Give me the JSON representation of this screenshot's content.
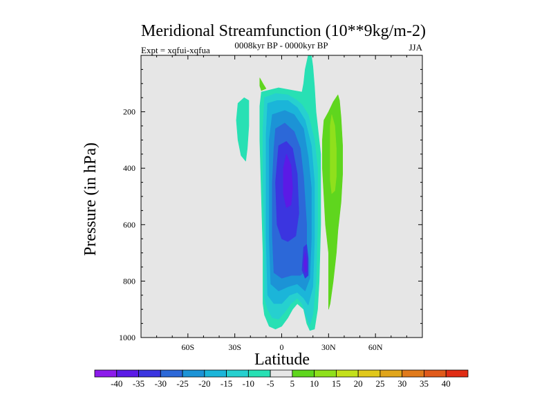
{
  "chart_data": {
    "type": "heatmap",
    "title": "Meridional Streamfunction (10**9kg/m-2)",
    "subtitle_left": "Expt = xqfui-xqfua",
    "subtitle_center": "0008kyr BP - 0000kyr BP",
    "subtitle_right": "JJA",
    "xlabel": "Latitude",
    "ylabel": "Pressure (in hPa)",
    "xlim": [
      -90,
      90
    ],
    "ylim": [
      1000,
      0
    ],
    "x_ticks": [
      {
        "value": -60,
        "label": "60S"
      },
      {
        "value": -30,
        "label": "30S"
      },
      {
        "value": 0,
        "label": "0"
      },
      {
        "value": 30,
        "label": "30N"
      },
      {
        "value": 60,
        "label": "60N"
      }
    ],
    "y_ticks": [
      {
        "value": 200,
        "label": "200"
      },
      {
        "value": 400,
        "label": "400"
      },
      {
        "value": 600,
        "label": "600"
      },
      {
        "value": 800,
        "label": "800"
      },
      {
        "value": 1000,
        "label": "1000"
      }
    ],
    "colorbar": {
      "levels": [
        "-40",
        "-35",
        "-30",
        "-25",
        "-20",
        "-15",
        "-10",
        "-5",
        "5",
        "10",
        "15",
        "20",
        "25",
        "30",
        "35",
        "40"
      ],
      "colors": [
        "#8c1aeb",
        "#5b1ae6",
        "#3b35e0",
        "#2c68d8",
        "#1c93d6",
        "#1bb5d9",
        "#26d0cf",
        "#28e0b4",
        "#e6e6e6",
        "#5fd61e",
        "#8fe01c",
        "#c3e01a",
        "#e0c81a",
        "#e0a51a",
        "#e07a1a",
        "#e05a1a",
        "#e02d14"
      ]
    },
    "regions": [
      {
        "name": "neg-5",
        "color": "#28e0b4",
        "points": [
          [
            -13,
            130
          ],
          [
            -2,
            115
          ],
          [
            8,
            125
          ],
          [
            13,
            130
          ],
          [
            14,
            100
          ],
          [
            15,
            50
          ],
          [
            17,
            0
          ],
          [
            19,
            0
          ],
          [
            20,
            40
          ],
          [
            21,
            110
          ],
          [
            22,
            200
          ],
          [
            25,
            350
          ],
          [
            25,
            600
          ],
          [
            24,
            800
          ],
          [
            23,
            900
          ],
          [
            21,
            970
          ],
          [
            18,
            975
          ],
          [
            16,
            950
          ],
          [
            14,
            900
          ],
          [
            10,
            880
          ],
          [
            7,
            900
          ],
          [
            4,
            930
          ],
          [
            0,
            960
          ],
          [
            -4,
            970
          ],
          [
            -8,
            960
          ],
          [
            -11,
            920
          ],
          [
            -12,
            880
          ],
          [
            -12,
            850
          ],
          [
            -12,
            700
          ],
          [
            -13,
            500
          ],
          [
            -14,
            300
          ],
          [
            -14,
            180
          ]
        ]
      },
      {
        "name": "neg-5-w",
        "color": "#28e0b4",
        "points": [
          [
            -28,
            170
          ],
          [
            -24,
            150
          ],
          [
            -21,
            160
          ],
          [
            -21,
            250
          ],
          [
            -22,
            330
          ],
          [
            -23,
            375
          ],
          [
            -26,
            355
          ],
          [
            -28,
            300
          ],
          [
            -29,
            230
          ]
        ]
      },
      {
        "name": "pos-5-dot",
        "color": "#5fd61e",
        "points": [
          [
            -14,
            80
          ],
          [
            -12,
            100
          ],
          [
            -10,
            118
          ],
          [
            -13,
            125
          ],
          [
            -14,
            108
          ]
        ]
      },
      {
        "name": "neg-10",
        "color": "#26d0cf",
        "points": [
          [
            -11,
            150
          ],
          [
            -4,
            135
          ],
          [
            4,
            140
          ],
          [
            10,
            160
          ],
          [
            13,
            175
          ],
          [
            17,
            210
          ],
          [
            21,
            300
          ],
          [
            23,
            400
          ],
          [
            23,
            600
          ],
          [
            22,
            800
          ],
          [
            20,
            920
          ],
          [
            18,
            955
          ],
          [
            16,
            930
          ],
          [
            13,
            880
          ],
          [
            10,
            860
          ],
          [
            6,
            880
          ],
          [
            2,
            910
          ],
          [
            -2,
            935
          ],
          [
            -6,
            930
          ],
          [
            -9,
            900
          ],
          [
            -11,
            860
          ],
          [
            -11,
            650
          ],
          [
            -12,
            450
          ],
          [
            -12,
            260
          ]
        ]
      },
      {
        "name": "neg-15",
        "color": "#1bb5d9",
        "points": [
          [
            -9,
            170
          ],
          [
            -3,
            160
          ],
          [
            4,
            160
          ],
          [
            10,
            185
          ],
          [
            15,
            230
          ],
          [
            19,
            320
          ],
          [
            21,
            450
          ],
          [
            21,
            650
          ],
          [
            20,
            820
          ],
          [
            17,
            885
          ],
          [
            14,
            860
          ],
          [
            10,
            840
          ],
          [
            5,
            850
          ],
          [
            0,
            880
          ],
          [
            -5,
            880
          ],
          [
            -9,
            850
          ],
          [
            -10,
            650
          ],
          [
            -10,
            450
          ],
          [
            -10,
            280
          ]
        ]
      },
      {
        "name": "neg-20",
        "color": "#1c93d6",
        "points": [
          [
            -6,
            210
          ],
          [
            2,
            195
          ],
          [
            8,
            210
          ],
          [
            14,
            260
          ],
          [
            17,
            360
          ],
          [
            19,
            470
          ],
          [
            19,
            650
          ],
          [
            18,
            790
          ],
          [
            15,
            835
          ],
          [
            10,
            810
          ],
          [
            4,
            820
          ],
          [
            -2,
            835
          ],
          [
            -7,
            810
          ],
          [
            -8,
            650
          ],
          [
            -8,
            450
          ],
          [
            -8,
            300
          ]
        ]
      },
      {
        "name": "neg-25",
        "color": "#2c68d8",
        "points": [
          [
            -4,
            260
          ],
          [
            2,
            240
          ],
          [
            8,
            270
          ],
          [
            12,
            330
          ],
          [
            14,
            430
          ],
          [
            16,
            600
          ],
          [
            16,
            760
          ],
          [
            12,
            780
          ],
          [
            6,
            780
          ],
          [
            0,
            790
          ],
          [
            -5,
            770
          ],
          [
            -6,
            640
          ],
          [
            -6,
            450
          ],
          [
            -5,
            330
          ]
        ]
      },
      {
        "name": "neg-30",
        "color": "#3b35e0",
        "points": [
          [
            -2,
            320
          ],
          [
            3,
            305
          ],
          [
            7,
            330
          ],
          [
            10,
            420
          ],
          [
            11,
            560
          ],
          [
            9,
            640
          ],
          [
            4,
            660
          ],
          [
            0,
            650
          ],
          [
            -3,
            600
          ],
          [
            -4,
            450
          ]
        ]
      },
      {
        "name": "neg-30-low",
        "color": "#3b35e0",
        "points": [
          [
            14,
            680
          ],
          [
            16,
            670
          ],
          [
            17,
            720
          ],
          [
            17,
            780
          ],
          [
            15,
            790
          ],
          [
            13,
            760
          ]
        ]
      },
      {
        "name": "neg-35",
        "color": "#5b1ae6",
        "points": [
          [
            3,
            350
          ],
          [
            6,
            390
          ],
          [
            7,
            470
          ],
          [
            6,
            530
          ],
          [
            3,
            540
          ],
          [
            1,
            490
          ],
          [
            1,
            400
          ]
        ]
      },
      {
        "name": "neg-35-low",
        "color": "#5b1ae6",
        "points": [
          [
            15,
            695
          ],
          [
            16,
            730
          ],
          [
            16,
            765
          ],
          [
            15,
            770
          ],
          [
            14,
            740
          ]
        ]
      },
      {
        "name": "pos-5",
        "color": "#5fd61e",
        "points": [
          [
            36,
            140
          ],
          [
            37,
            160
          ],
          [
            38,
            220
          ],
          [
            39,
            320
          ],
          [
            39,
            420
          ],
          [
            38,
            520
          ],
          [
            36,
            620
          ],
          [
            35,
            700
          ],
          [
            33,
            800
          ],
          [
            31,
            880
          ],
          [
            30,
            900
          ],
          [
            30,
            800
          ],
          [
            30,
            700
          ],
          [
            28,
            600
          ],
          [
            27,
            500
          ],
          [
            26,
            400
          ],
          [
            26,
            300
          ],
          [
            27,
            230
          ],
          [
            30,
            200
          ],
          [
            33,
            165
          ]
        ]
      },
      {
        "name": "pos-10",
        "color": "#8fe01c",
        "points": [
          [
            32,
            210
          ],
          [
            34,
            250
          ],
          [
            35,
            330
          ],
          [
            35,
            430
          ],
          [
            34,
            480
          ],
          [
            32,
            490
          ],
          [
            31,
            440
          ],
          [
            31,
            320
          ],
          [
            31,
            250
          ]
        ]
      }
    ]
  }
}
